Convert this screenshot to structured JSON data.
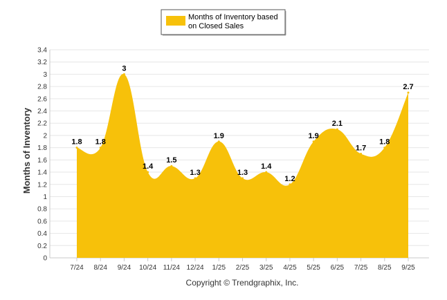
{
  "chart_data": {
    "type": "area",
    "categories": [
      "7/24",
      "8/24",
      "9/24",
      "10/24",
      "11/24",
      "12/24",
      "1/25",
      "2/25",
      "3/25",
      "4/25",
      "5/25",
      "6/25",
      "7/25",
      "8/25",
      "9/25"
    ],
    "series": [
      {
        "name": "Months of Inventory based on Closed Sales",
        "values": [
          1.8,
          1.8,
          3,
          1.4,
          1.5,
          1.3,
          1.9,
          1.3,
          1.4,
          1.2,
          1.9,
          2.1,
          1.7,
          1.8,
          2.7
        ],
        "color": "#f7c10a"
      }
    ],
    "legend_lines": [
      "Months of Inventory based",
      "on Closed Sales"
    ],
    "ylabel": "Months of Inventory",
    "ylim": [
      0,
      3.4
    ],
    "yticks": [
      "0",
      "0.2",
      "0.4",
      "0.6",
      "0.8",
      "1",
      "1.2",
      "1.4",
      "1.6",
      "1.8",
      "2",
      "2.2",
      "2.4",
      "2.6",
      "2.8",
      "3",
      "3.2",
      "3.4"
    ],
    "grid": true,
    "legend_position": "top-center",
    "footer": "Copyright © Trendgraphix, Inc."
  }
}
